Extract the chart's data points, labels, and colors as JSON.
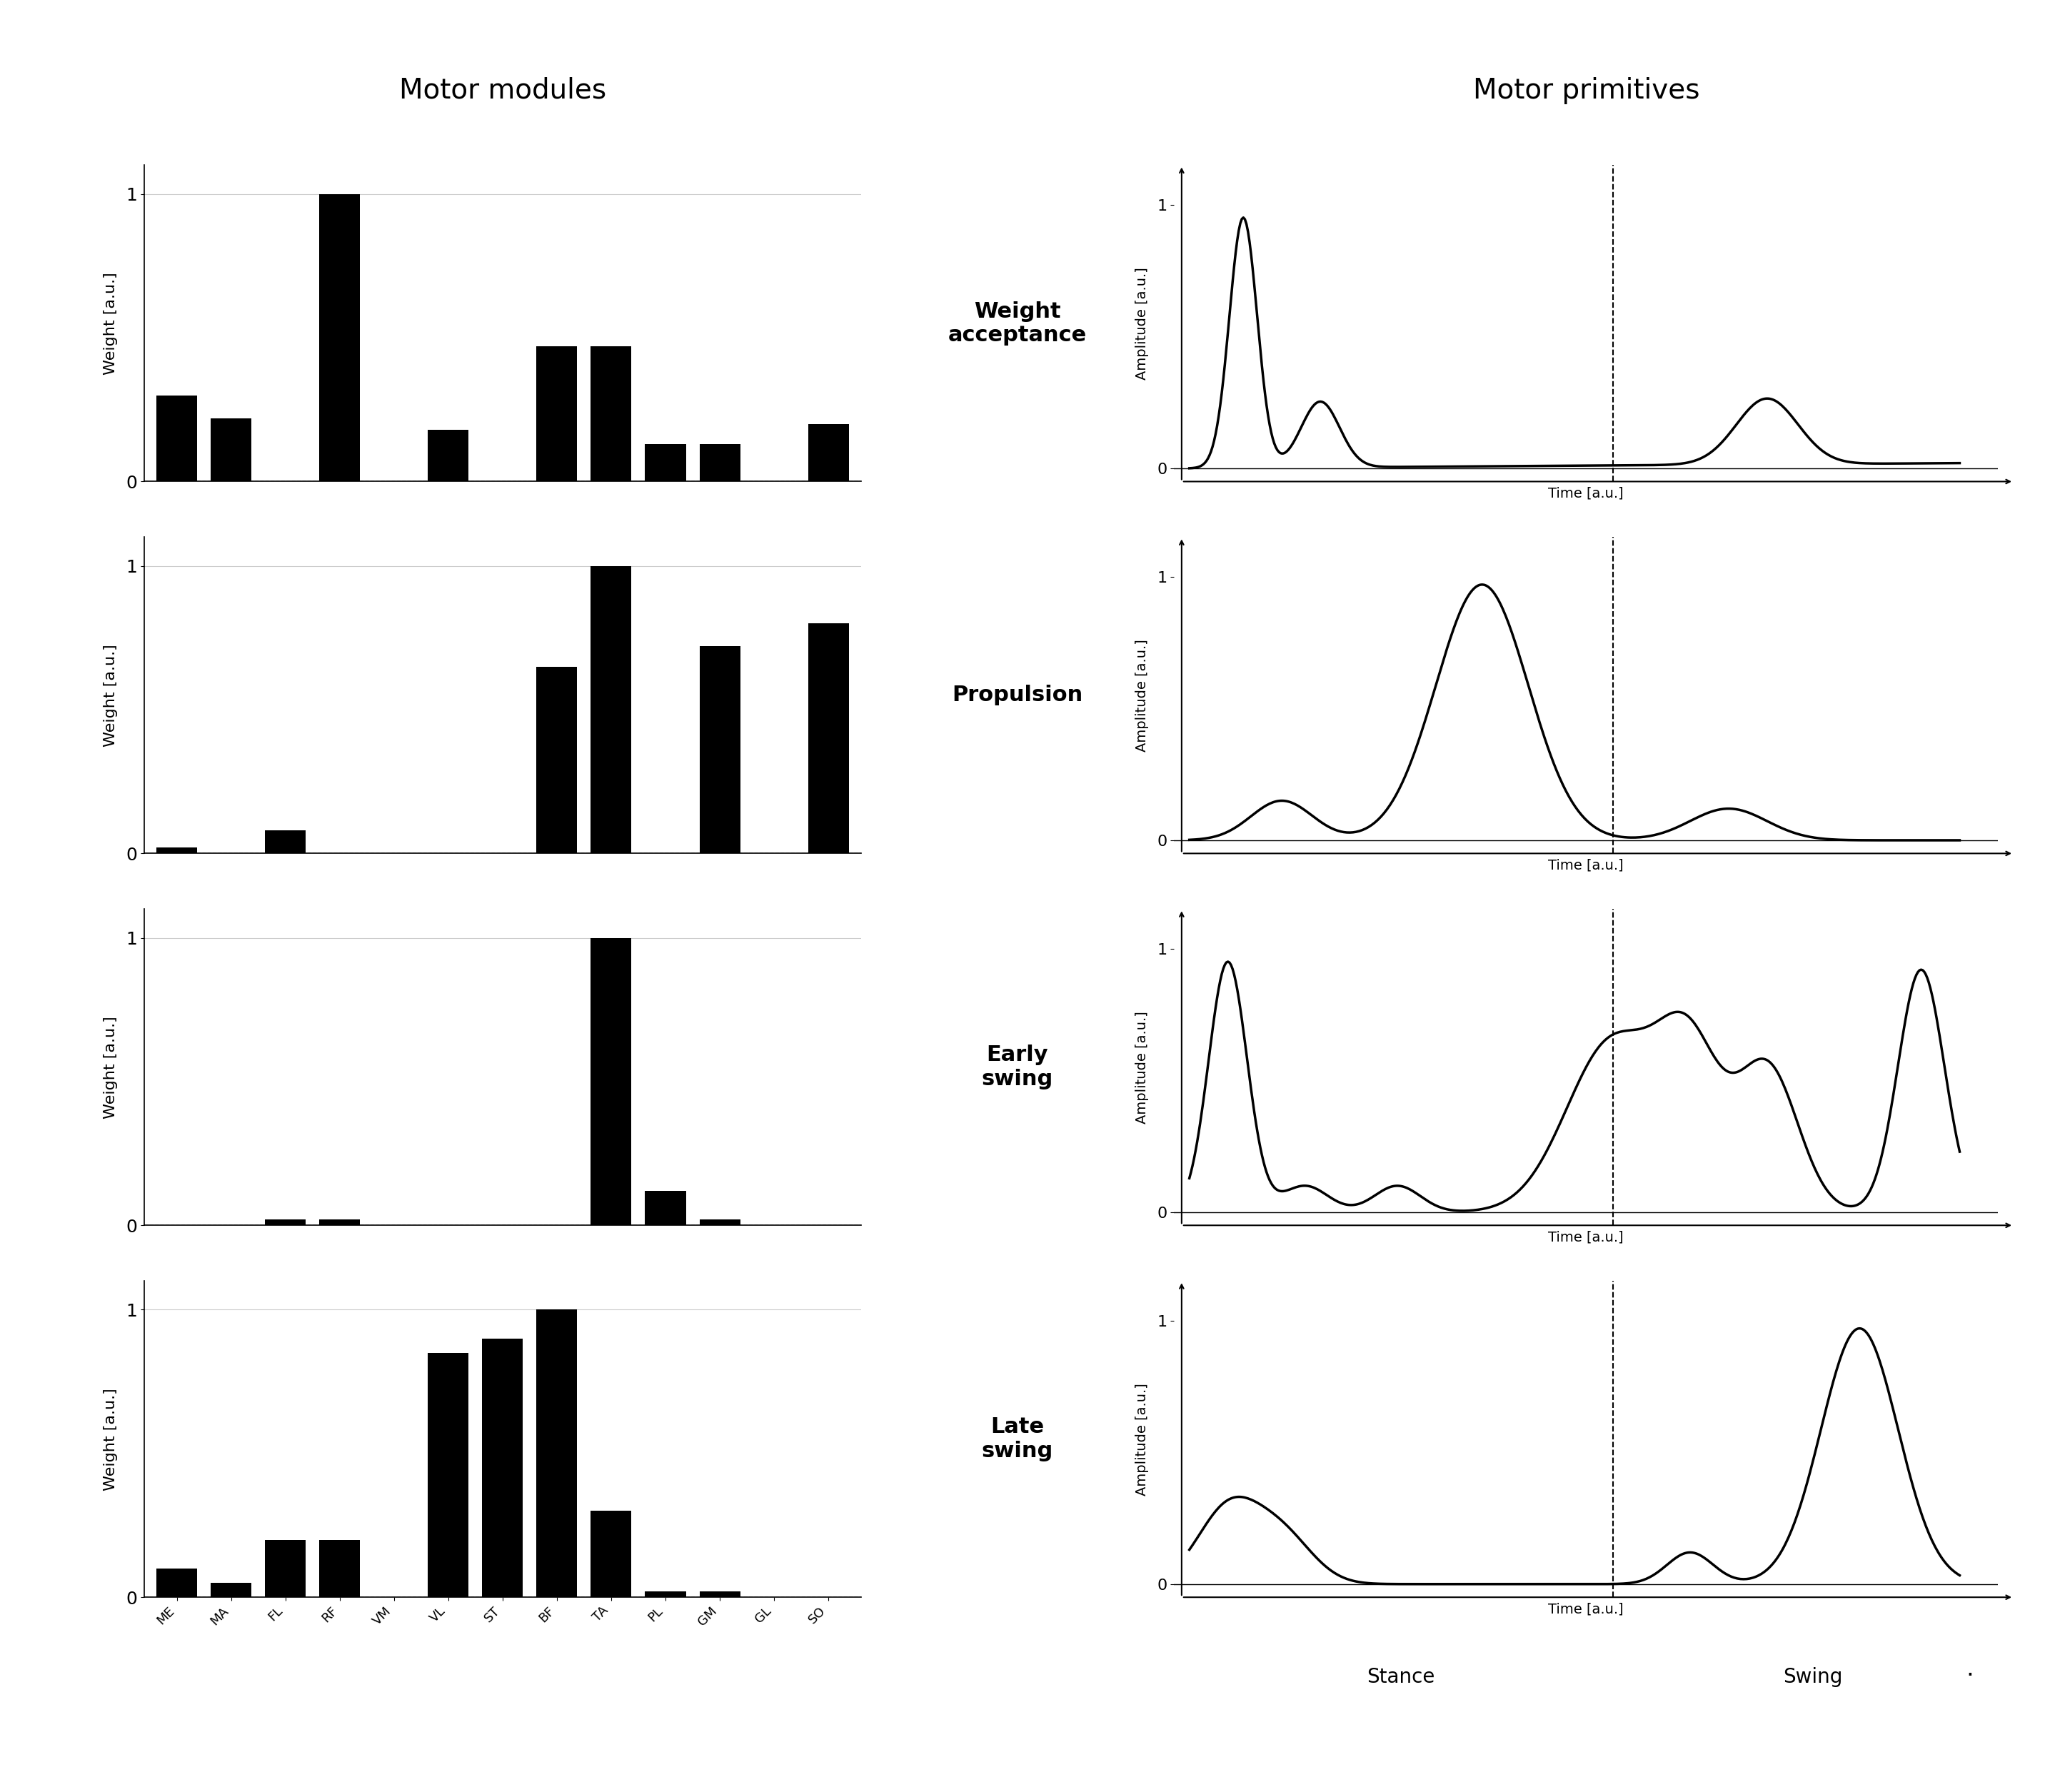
{
  "title_left": "Motor modules",
  "title_right": "Motor primitives",
  "muscle_labels": [
    "ME",
    "MA",
    "FL",
    "RF",
    "VM",
    "VL",
    "ST",
    "BF",
    "TA",
    "PL",
    "GM",
    "GL",
    "SO"
  ],
  "bar_colors": [
    "#000000"
  ],
  "synergy_labels": [
    "Weight\nacceptance",
    "Propulsion",
    "Early\nswing",
    "Late\nswing"
  ],
  "weight_acceptance": [
    0.3,
    0.22,
    0.0,
    1.0,
    0.0,
    0.18,
    0.0,
    0.47,
    0.47,
    0.13,
    0.13,
    0.0,
    0.2
  ],
  "propulsion": [
    0.02,
    0.0,
    0.08,
    0.0,
    0.0,
    0.0,
    0.0,
    0.65,
    1.0,
    0.0,
    0.72,
    0.0,
    0.8
  ],
  "early_swing": [
    0.0,
    0.0,
    0.02,
    0.02,
    0.0,
    0.0,
    0.0,
    0.0,
    1.0,
    0.12,
    0.02,
    0.0,
    0.0
  ],
  "late_swing": [
    0.1,
    0.05,
    0.2,
    0.2,
    0.0,
    0.85,
    0.9,
    1.0,
    0.3,
    0.02,
    0.02,
    0.0,
    0.0
  ],
  "background_color": "#ffffff",
  "text_color": "#000000",
  "dashed_line_color": "#000000",
  "grid_color": "#cccccc"
}
